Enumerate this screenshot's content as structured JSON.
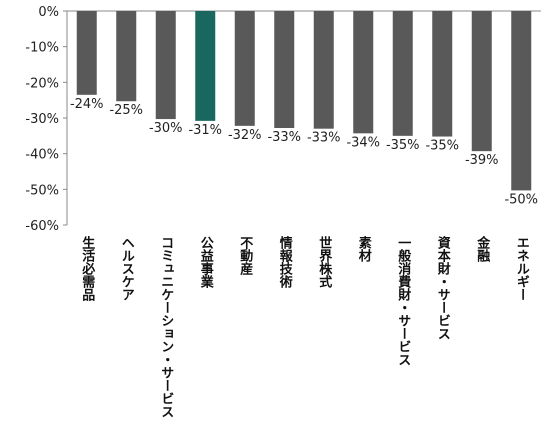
{
  "chart_data": {
    "type": "bar",
    "categories": [
      "生活必需品",
      "ヘルスケア",
      "コミュニケーション・サービス",
      "公益事業",
      "不動産",
      "情報技術",
      "世界株式",
      "素材",
      "一般消費財・サービス",
      "資本財・サービス",
      "金融",
      "エネルギー"
    ],
    "values": [
      -23.5,
      -25.3,
      -30.3,
      -30.8,
      -32.2,
      -32.8,
      -33.0,
      -34.3,
      -35.0,
      -35.2,
      -39.3,
      -50.3
    ],
    "data_labels": [
      "-24%",
      "-25%",
      "-30%",
      "-31%",
      "-32%",
      "-33%",
      "-33%",
      "-34%",
      "-35%",
      "-35%",
      "-39%",
      "-50%"
    ],
    "ylim": [
      -60,
      0
    ],
    "yticks": [
      0,
      -10,
      -20,
      -30,
      -40,
      -50,
      -60
    ],
    "ytick_labels": [
      "0%",
      "-10%",
      "-20%",
      "-30%",
      "-40%",
      "-50%",
      "-60%"
    ],
    "highlight_category": "公益事業",
    "colors": {
      "bar": "#595959",
      "highlight": "#19675f",
      "axis": "#8a8a8a"
    },
    "grid": false,
    "legend": "none",
    "title": "",
    "xlabel": "",
    "ylabel": ""
  }
}
